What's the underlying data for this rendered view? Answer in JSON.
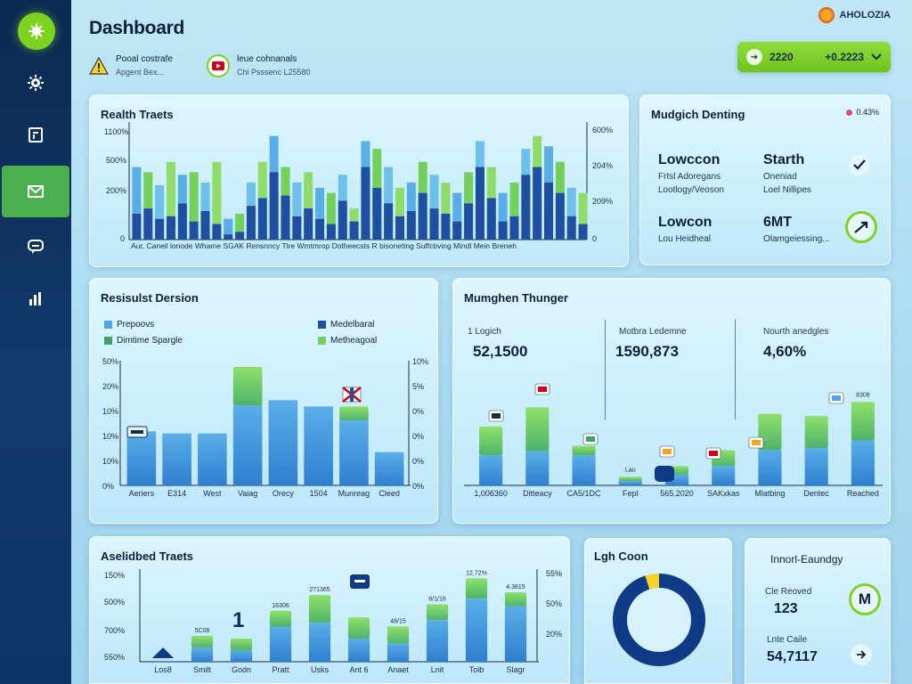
{
  "sidebar": {
    "logo_icon": "leaf-icon",
    "items": [
      {
        "icon": "gear-icon",
        "label": ""
      },
      {
        "icon": "calendar-icon",
        "label": ""
      },
      {
        "icon": "mail-icon",
        "label": "",
        "active": true
      },
      {
        "icon": "chat-icon",
        "label": ""
      },
      {
        "icon": "bar-chart-icon",
        "label": ""
      }
    ]
  },
  "header": {
    "title": "Dashboard",
    "alert": {
      "title": "Pooal costrafe",
      "subtitle": "Apgent Bex..."
    },
    "notification": {
      "title": "leue cohnanals",
      "subtitle": "Chi Psssenc L25580"
    },
    "brand": "AHOLOZIA",
    "range": {
      "from": "2220",
      "to": "+0.2223"
    }
  },
  "colors": {
    "accent": "#7ed321",
    "blue": "#1e4fa0",
    "light_blue": "#4ea4e6",
    "green": "#74d05a"
  },
  "cards": {
    "top_left": {
      "title": "Realth Traets",
      "left_ticks": [
        "1100%",
        "500%",
        "200%",
        "0"
      ],
      "right_ticks": [
        "600%",
        "204%",
        "209%",
        "0"
      ],
      "x_labels": "Aur, Caneil lonode Whame SGAK Rensnncy Tlre Wmtmrop Dotheecsts R bisoneting Suffcbving Mindl Mein Breneh"
    },
    "top_right": {
      "title": "Mudgich Denting",
      "badge": "0.43%",
      "left_a": {
        "title": "Lowccon",
        "line1": "Frtsl Adoregans",
        "line2": "Lootlogy/Veoson"
      },
      "right_a": {
        "title": "Starth",
        "line1": "Oneniad",
        "line2": "Loel Nillipes"
      },
      "left_b": {
        "title": "Lowcon",
        "line1": "Lou Heidheal"
      },
      "right_b": {
        "title": "6MT",
        "line1": "Olamgeiessing..."
      }
    },
    "mid_left": {
      "title": "Resisulst Dersion",
      "legend": [
        "Prepoovs",
        "Medelbaral",
        "Dimtime Spargle",
        "Metheagoal"
      ],
      "left_ticks": [
        "50%",
        "20%",
        "10%",
        "10%",
        "10%",
        "0%"
      ],
      "right_ticks": [
        "10%",
        "5%",
        "0%",
        "0%",
        "0%",
        "0%"
      ],
      "x_labels": [
        "Aeriers",
        "E314",
        "West",
        "Vaiag",
        "Orecy",
        "1504",
        "Munreag",
        "Cleed"
      ]
    },
    "mid_right": {
      "title": "Mumghen Thunger",
      "metric1": {
        "label": "1 Logich",
        "value": "52,1500"
      },
      "metric2": {
        "label": "Motbra Ledemne",
        "value": "1590,873"
      },
      "metric3": {
        "label": "Nourth anedgles",
        "value": "4,60%"
      },
      "annot_lau": "Lau",
      "annot_top": "8308",
      "x_labels": [
        "1,006360",
        "Ditteacy",
        "CA5/1DC",
        "Fepl",
        "565.2020",
        "SAKxkas",
        "Mlatbing",
        "Dentec",
        "Reached"
      ]
    },
    "bottom_left": {
      "title": "Aselidbed Traets",
      "left_ticks": [
        "150%",
        "500%",
        "700%",
        "550%"
      ],
      "right_ticks": [
        "55%",
        "50%",
        "20%"
      ],
      "big_marker": "1",
      "bar_labels": [
        "",
        "5C08",
        "",
        "16306",
        "271365",
        "",
        "48/15",
        "6/1/16",
        "12,72%",
        "4.3815"
      ],
      "x_labels": [
        "Los8",
        "Smilt",
        "Godn",
        "Pratt",
        "Usks",
        "Ant 6",
        "Anaet",
        "Lnit",
        "Tolb",
        "Slagr"
      ]
    },
    "bottom_mid": {
      "title": "Lgh Coon",
      "donut": {
        "segments": [
          {
            "value": 95,
            "color": "#0e3a86"
          },
          {
            "value": 5,
            "color": "#f5d328"
          }
        ]
      }
    },
    "bottom_right": {
      "title": "Innorl-Eaundgy",
      "metric1": {
        "label": "Cle Reoved",
        "value": "123"
      },
      "metric2": {
        "label": "Lnte Caile",
        "value": "54,7117"
      }
    }
  },
  "chart_data": [
    {
      "type": "bar",
      "title": "Realth Traets",
      "ylim": [
        0,
        1100
      ],
      "series": [
        {
          "values": [
            10,
            12,
            8,
            9,
            14,
            7,
            11,
            6,
            2,
            3,
            13,
            16,
            26,
            17,
            9,
            12,
            8,
            6,
            15,
            7,
            28,
            20,
            14,
            9,
            11,
            18,
            12,
            10,
            7,
            14,
            28,
            16,
            7,
            9,
            25,
            28,
            22,
            18,
            9,
            6
          ]
        },
        {
          "values": [
            28,
            26,
            21,
            30,
            25,
            26,
            22,
            30,
            8,
            10,
            22,
            30,
            40,
            28,
            22,
            26,
            20,
            18,
            25,
            12,
            38,
            35,
            28,
            20,
            22,
            30,
            25,
            22,
            18,
            26,
            38,
            28,
            18,
            22,
            35,
            40,
            36,
            30,
            20,
            18
          ]
        }
      ]
    },
    {
      "type": "bar",
      "title": "Resisulst Dersion",
      "categories": [
        "Aeriers",
        "E314",
        "West",
        "Vaiag",
        "Orecy",
        "1504",
        "Munreag",
        "Cleed"
      ],
      "series": [
        {
          "values": [
            12,
            12,
            12,
            16,
            20,
            20,
            13,
            10
          ]
        },
        {
          "values": [
            26,
            25,
            25,
            57,
            41,
            38,
            38,
            16
          ]
        }
      ],
      "ylim": [
        0,
        60
      ]
    },
    {
      "type": "bar",
      "title": "Mumghen Thunger",
      "categories": [
        "1,006360",
        "Ditteacy",
        "CA5/1DC",
        "Fepl",
        "565.2020",
        "SAKxkas",
        "Mlatbing",
        "Dentec",
        "Reached"
      ],
      "series": [
        {
          "values": [
            28,
            32,
            28,
            4,
            10,
            18,
            33,
            35,
            42
          ]
        },
        {
          "values": [
            55,
            73,
            37,
            8,
            18,
            33,
            67,
            65,
            78
          ]
        }
      ],
      "ylim": [
        0,
        100
      ]
    },
    {
      "type": "bar",
      "title": "Aselidbed Traets",
      "categories": [
        "Los8",
        "Smilt",
        "Godn",
        "Pratt",
        "Usks",
        "Ant 6",
        "Anaet",
        "Lnit",
        "Tolb",
        "Slagr"
      ],
      "series": [
        {
          "values": [
            3,
            15,
            12,
            38,
            42,
            25,
            20,
            45,
            68,
            60
          ]
        },
        {
          "values": [
            6,
            28,
            25,
            55,
            72,
            48,
            38,
            62,
            90,
            75
          ]
        }
      ],
      "ylim": [
        0,
        100
      ]
    }
  ]
}
